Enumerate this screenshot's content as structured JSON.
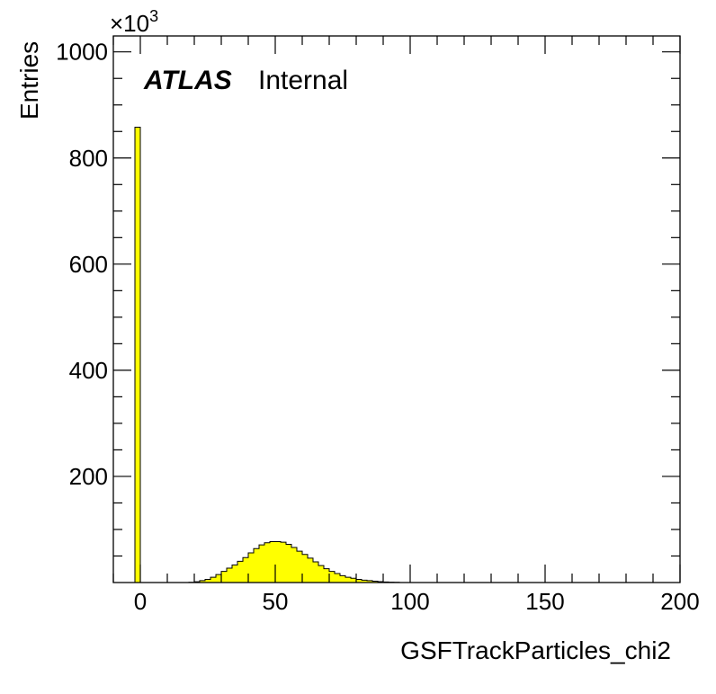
{
  "chart_data": {
    "type": "bar",
    "histogram": true,
    "xlabel": "GSFTrackParticles_chi2",
    "ylabel": "Entries",
    "y_exponent": "×10",
    "y_exponent_power": "3",
    "brand": {
      "atlas": "ATLAS",
      "status": "Internal"
    },
    "xlim": [
      -10,
      200
    ],
    "ylim": [
      0,
      1030
    ],
    "x_ticks": [
      0,
      50,
      100,
      150,
      200
    ],
    "x_tick_labels": [
      "0",
      "50",
      "100",
      "150",
      "200"
    ],
    "y_ticks": [
      200,
      400,
      600,
      800,
      1000
    ],
    "y_tick_labels": [
      "200",
      "400",
      "600",
      "800",
      "1000"
    ],
    "bin_width": 2,
    "bin_edges_start": -2,
    "values": [
      858,
      0,
      0,
      0,
      0,
      0,
      0,
      0,
      0,
      0,
      0.5,
      1.5,
      3.5,
      6,
      10,
      15,
      21,
      27,
      33,
      40,
      47,
      56,
      64,
      71,
      75,
      77,
      77,
      76,
      72,
      66,
      59,
      53,
      46,
      39,
      32,
      26,
      21,
      17,
      13,
      10,
      8,
      6,
      4.5,
      3.5,
      2.5,
      1.6,
      1.1,
      0.7,
      0.5
    ],
    "fill_color": "#ffff00",
    "line_color": "#000000"
  }
}
